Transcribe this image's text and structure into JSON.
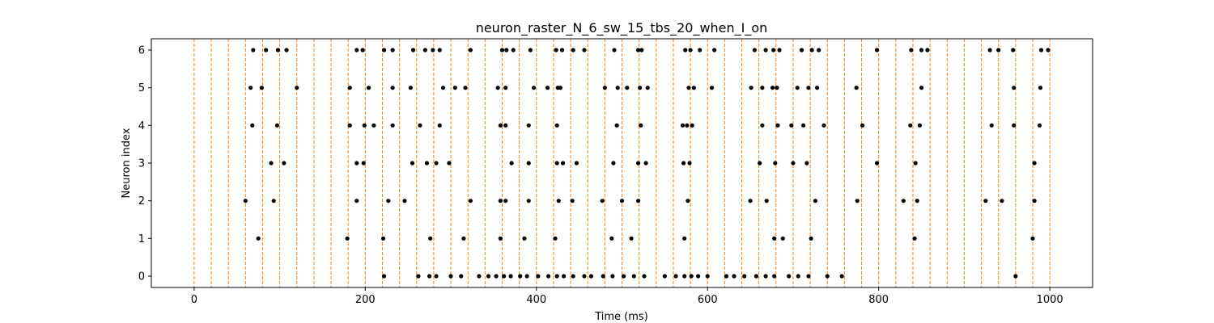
{
  "chart_data": {
    "type": "scatter",
    "title": "neuron_raster_N_6_sw_15_tbs_20_when_I_on",
    "xlabel": "Time (ms)",
    "ylabel": "Neuron index",
    "xlim": [
      -50,
      1050
    ],
    "ylim": [
      -0.3,
      6.3
    ],
    "xticks": [
      0,
      200,
      400,
      600,
      800,
      1000
    ],
    "yticks": [
      0,
      1,
      2,
      3,
      4,
      5,
      6
    ],
    "grid": false,
    "legend": "none",
    "marker_color": "#000000",
    "vline_color": "#ff7f0e",
    "vlines": [
      0,
      20,
      40,
      60,
      80,
      100,
      120,
      140,
      160,
      180,
      200,
      220,
      240,
      260,
      280,
      300,
      320,
      340,
      360,
      380,
      400,
      420,
      440,
      460,
      480,
      500,
      520,
      540,
      560,
      580,
      600,
      620,
      640,
      660,
      680,
      700,
      720,
      740,
      760,
      780,
      800,
      820,
      840,
      860,
      880,
      900,
      920,
      940,
      960,
      980,
      1000
    ],
    "spikes": [
      {
        "neuron": 0,
        "times": [
          222,
          262,
          275,
          283,
          300,
          312,
          333,
          344,
          353,
          362,
          370,
          381,
          389,
          402,
          414,
          424,
          432,
          443,
          456,
          464,
          478,
          489,
          502,
          514,
          526,
          550,
          563,
          573,
          581,
          589,
          600,
          622,
          631,
          643,
          657,
          668,
          678,
          695,
          706,
          718,
          740,
          757,
          960
        ]
      },
      {
        "neuron": 1,
        "times": [
          75,
          179,
          221,
          276,
          315,
          358,
          386,
          422,
          488,
          511,
          573,
          678,
          688,
          721,
          842,
          980
        ]
      },
      {
        "neuron": 2,
        "times": [
          60,
          93,
          190,
          227,
          246,
          323,
          358,
          364,
          391,
          426,
          442,
          477,
          500,
          519,
          577,
          650,
          669,
          726,
          775,
          829,
          845,
          925,
          944,
          982
        ]
      },
      {
        "neuron": 3,
        "times": [
          90,
          105,
          190,
          198,
          255,
          272,
          283,
          298,
          371,
          391,
          424,
          431,
          447,
          490,
          519,
          528,
          572,
          579,
          661,
          679,
          700,
          716,
          798,
          843,
          982
        ]
      },
      {
        "neuron": 4,
        "times": [
          68,
          97,
          182,
          199,
          210,
          232,
          264,
          287,
          358,
          364,
          391,
          424,
          494,
          522,
          571,
          576,
          582,
          664,
          682,
          698,
          712,
          736,
          781,
          837,
          848,
          932,
          958,
          988
        ]
      },
      {
        "neuron": 5,
        "times": [
          66,
          79,
          120,
          182,
          204,
          232,
          253,
          291,
          305,
          317,
          355,
          364,
          397,
          413,
          425,
          428,
          480,
          495,
          506,
          521,
          530,
          578,
          584,
          605,
          651,
          664,
          676,
          681,
          705,
          718,
          728,
          774,
          850,
          958,
          989
        ]
      },
      {
        "neuron": 6,
        "times": [
          69,
          84,
          98,
          108,
          190,
          197,
          222,
          232,
          256,
          270,
          279,
          287,
          323,
          360,
          365,
          373,
          393,
          423,
          430,
          443,
          456,
          491,
          519,
          523,
          574,
          580,
          591,
          608,
          655,
          668,
          677,
          684,
          710,
          722,
          730,
          798,
          838,
          850,
          857,
          930,
          940,
          957,
          990,
          998
        ]
      }
    ]
  }
}
